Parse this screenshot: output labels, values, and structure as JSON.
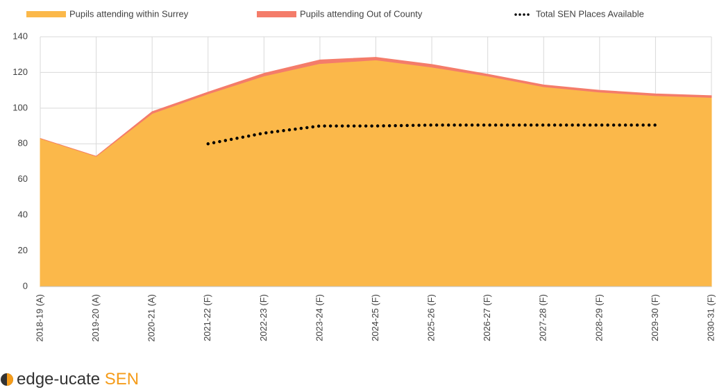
{
  "chart_data": {
    "type": "stacked_area",
    "categories": [
      "2018-19 (A)",
      "2019-20 (A)",
      "2020-21 (A)",
      "2021-22 (F)",
      "2022-23 (F)",
      "2023-24 (F)",
      "2024-25 (F)",
      "2025-26 (F)",
      "2026-27 (F)",
      "2027-28 (F)",
      "2028-29 (F)",
      "2029-30 (F)",
      "2030-31 (F)"
    ],
    "series": [
      {
        "name": "Pupils attending within Surrey",
        "color": "#fbb84a",
        "values": [
          83,
          73,
          97,
          108,
          118,
          125,
          127,
          123,
          118,
          112,
          109,
          107,
          106
        ]
      },
      {
        "name": "Pupils attending Out of County",
        "color": "#f47c6a",
        "values": [
          0,
          0,
          1,
          1,
          1.5,
          2,
          1.5,
          1.5,
          1,
          1,
          1,
          1,
          1
        ]
      },
      {
        "name": "Total SEN Places Available",
        "color": "#000000",
        "type": "dotted_line",
        "values": [
          null,
          null,
          null,
          80,
          86,
          90,
          90,
          90.5,
          90.5,
          90.5,
          90.5,
          90.5,
          null
        ]
      }
    ],
    "ylim": [
      0,
      140
    ],
    "yticks": [
      0,
      20,
      40,
      60,
      80,
      100,
      120,
      140
    ],
    "grid": true,
    "legend": "top"
  },
  "logo": {
    "text": "edge-ucate",
    "highlight": "SEN"
  }
}
